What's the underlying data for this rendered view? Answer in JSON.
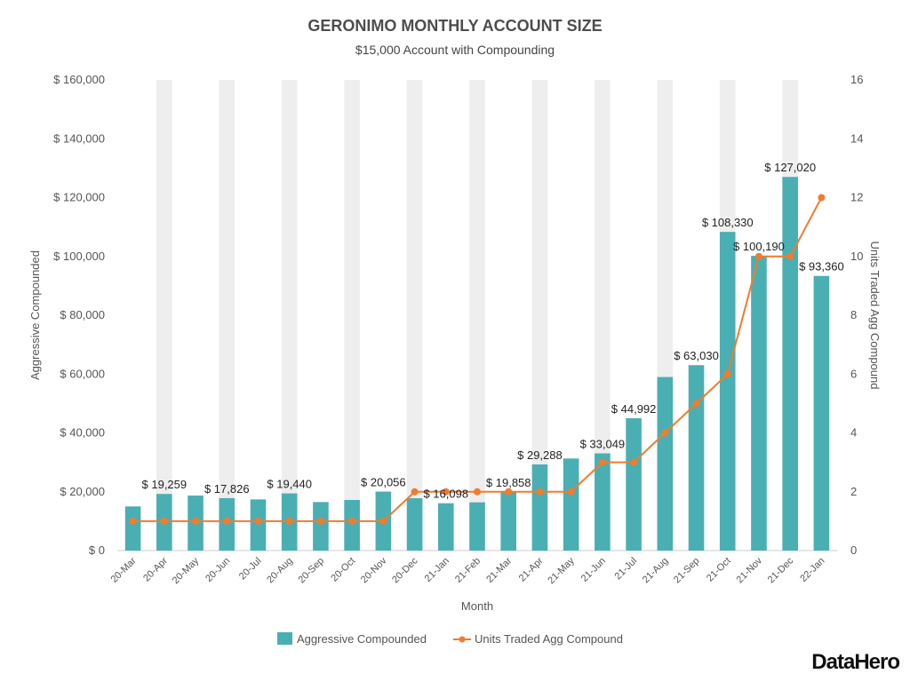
{
  "chart_data": {
    "type": "bar",
    "title": "GERONIMO MONTHLY ACCOUNT SIZE",
    "subtitle": "$15,000 Account with Compounding",
    "xlabel": "Month",
    "ylabel": "Aggressive Compounded",
    "y2label": "Units Traded Agg Compound",
    "ylim": [
      0,
      160000
    ],
    "y2lim": [
      0,
      16
    ],
    "yticks": [
      0,
      20000,
      40000,
      60000,
      80000,
      100000,
      120000,
      140000,
      160000
    ],
    "ytick_labels": [
      "$ 0",
      "$ 20,000",
      "$ 40,000",
      "$ 60,000",
      "$ 80,000",
      "$ 100,000",
      "$ 120,000",
      "$ 140,000",
      "$ 160,000"
    ],
    "y2ticks": [
      0,
      2,
      4,
      6,
      8,
      10,
      12,
      14,
      16
    ],
    "y2tick_labels": [
      "0",
      "2",
      "4",
      "6",
      "8",
      "10",
      "12",
      "14",
      "16"
    ],
    "categories": [
      "20-Mar",
      "20-Apr",
      "20-May",
      "20-Jun",
      "20-Jul",
      "20-Aug",
      "20-Sep",
      "20-Oct",
      "20-Nov",
      "20-Dec",
      "21-Jan",
      "21-Feb",
      "21-Mar",
      "21-Apr",
      "21-May",
      "21-Jun",
      "21-Jul",
      "21-Aug",
      "21-Sep",
      "21-Oct",
      "21-Nov",
      "21-Dec",
      "22-Jan"
    ],
    "series": [
      {
        "name": "Aggressive Compounded",
        "type": "bar",
        "axis": "left",
        "color": "#4aafb3",
        "values": [
          15000,
          19259,
          18700,
          17826,
          17400,
          19440,
          16500,
          17200,
          20056,
          17800,
          16098,
          16400,
          19858,
          29288,
          31300,
          33049,
          44992,
          59000,
          63030,
          108330,
          100190,
          127020,
          93360
        ]
      },
      {
        "name": "Units Traded Agg Compound",
        "type": "line",
        "axis": "right",
        "color": "#f07c2e",
        "values": [
          1,
          1,
          1,
          1,
          1,
          1,
          1,
          1,
          1,
          2,
          2,
          2,
          2,
          2,
          2,
          3,
          3,
          4,
          5,
          6,
          10,
          10,
          12
        ]
      }
    ],
    "data_labels": [
      {
        "index": 1,
        "text": "$ 19,259"
      },
      {
        "index": 3,
        "text": "$ 17,826"
      },
      {
        "index": 5,
        "text": "$ 19,440"
      },
      {
        "index": 8,
        "text": "$ 20,056"
      },
      {
        "index": 10,
        "text": "$ 16,098"
      },
      {
        "index": 12,
        "text": "$ 19,858"
      },
      {
        "index": 13,
        "text": "$ 29,288"
      },
      {
        "index": 15,
        "text": "$ 33,049"
      },
      {
        "index": 16,
        "text": "$ 44,992"
      },
      {
        "index": 18,
        "text": "$ 63,030"
      },
      {
        "index": 19,
        "text": "$ 108,330"
      },
      {
        "index": 20,
        "text": "$ 100,190"
      },
      {
        "index": 21,
        "text": "$ 127,020"
      },
      {
        "index": 22,
        "text": "$ 93,360"
      }
    ],
    "legend": [
      "Aggressive Compounded",
      "Units Traded Agg Compound"
    ],
    "legend_position": "bottom",
    "alternating_column_shading": true,
    "shade_color": "#eeeeee"
  },
  "branding": {
    "logo_text": "DataHero"
  }
}
